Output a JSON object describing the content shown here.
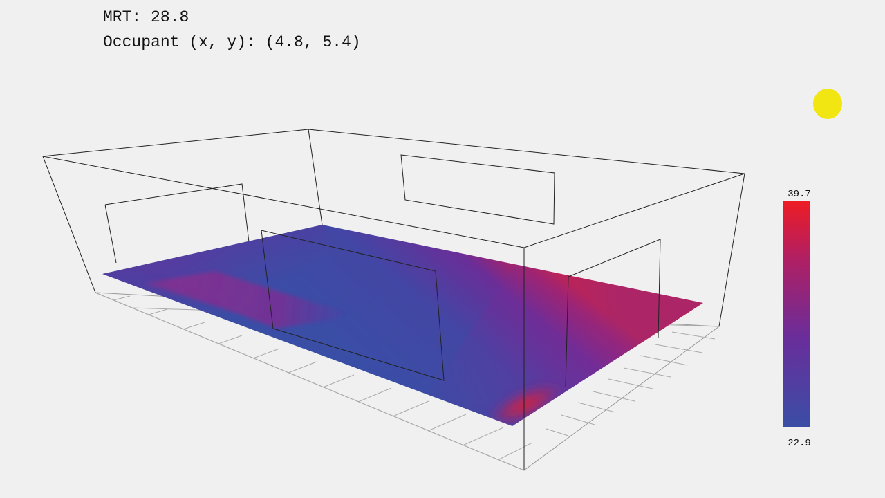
{
  "readout": {
    "mrt_label": "MRT:",
    "mrt_value": "28.8",
    "occupant_label": "Occupant (x, y):",
    "occupant_x": "4.8",
    "occupant_y": "5.4"
  },
  "legend": {
    "max_label": "39.7",
    "min_label": "22.9",
    "max_value": 39.7,
    "min_value": 22.9,
    "colors": {
      "hot": "#ee1c24",
      "mid": "#6a2d9a",
      "cool": "#3a4ea6"
    }
  },
  "sun": {
    "icon": "sun-icon",
    "color": "#f2e612"
  },
  "scene": {
    "line_color": "#222222",
    "grid_color": "#aaaaaa"
  }
}
